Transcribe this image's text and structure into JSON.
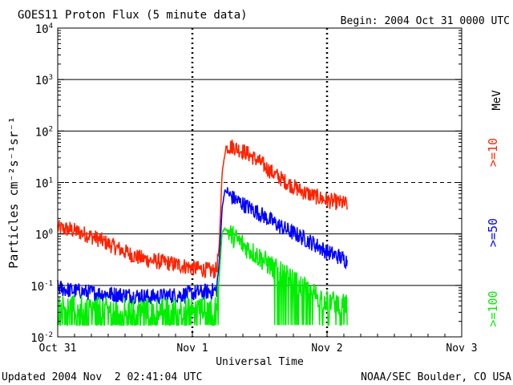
{
  "chart_data": {
    "type": "line",
    "title": "GOES11 Proton Flux (5 minute data)",
    "begin_label": "Begin: 2004 Oct 31 0000 UTC",
    "xlabel": "Universal Time",
    "ylabel": "Particles cm⁻²s⁻¹sr⁻¹",
    "y_scale": "log",
    "ylim": [
      0.01,
      10000
    ],
    "y_ticks": [
      {
        "value": 0.01,
        "base": "10",
        "exp": "-2"
      },
      {
        "value": 0.1,
        "base": "10",
        "exp": "-1"
      },
      {
        "value": 1,
        "base": "10",
        "exp": "0"
      },
      {
        "value": 10,
        "base": "10",
        "exp": "1"
      },
      {
        "value": 100,
        "base": "10",
        "exp": "2"
      },
      {
        "value": 1000,
        "base": "10",
        "exp": "3"
      },
      {
        "value": 10000,
        "base": "10",
        "exp": "4"
      }
    ],
    "xlim_days": [
      0,
      3
    ],
    "x_ticks": [
      {
        "day": 0,
        "label": "Oct 31"
      },
      {
        "day": 1,
        "label": "Nov 1"
      },
      {
        "day": 2,
        "label": "Nov 2"
      },
      {
        "day": 3,
        "label": "Nov 3"
      }
    ],
    "grid": "horizontal solid at decades, dashed at 10; dashed vertical markers at day boundaries",
    "series": [
      {
        "name": ">=10",
        "color": "#ff2200",
        "points": [
          [
            0.0,
            1.3
          ],
          [
            0.1,
            1.2
          ],
          [
            0.2,
            1.0
          ],
          [
            0.3,
            0.8
          ],
          [
            0.4,
            0.6
          ],
          [
            0.5,
            0.45
          ],
          [
            0.6,
            0.35
          ],
          [
            0.7,
            0.3
          ],
          [
            0.8,
            0.28
          ],
          [
            0.9,
            0.25
          ],
          [
            1.0,
            0.22
          ],
          [
            1.1,
            0.2
          ],
          [
            1.15,
            0.19
          ],
          [
            1.18,
            0.2
          ],
          [
            1.2,
            0.6
          ],
          [
            1.22,
            15
          ],
          [
            1.25,
            50
          ],
          [
            1.3,
            50
          ],
          [
            1.4,
            38
          ],
          [
            1.5,
            25
          ],
          [
            1.6,
            15
          ],
          [
            1.7,
            10
          ],
          [
            1.8,
            7
          ],
          [
            1.9,
            5.5
          ],
          [
            2.0,
            4.5
          ],
          [
            2.1,
            4.0
          ],
          [
            2.15,
            3.8
          ]
        ]
      },
      {
        "name": ">=50",
        "color": "#0000ff",
        "points": [
          [
            0.0,
            0.09
          ],
          [
            0.1,
            0.08
          ],
          [
            0.2,
            0.075
          ],
          [
            0.3,
            0.07
          ],
          [
            0.5,
            0.065
          ],
          [
            0.7,
            0.06
          ],
          [
            0.9,
            0.065
          ],
          [
            1.0,
            0.07
          ],
          [
            1.1,
            0.075
          ],
          [
            1.18,
            0.08
          ],
          [
            1.2,
            0.3
          ],
          [
            1.22,
            3
          ],
          [
            1.24,
            7
          ],
          [
            1.3,
            5
          ],
          [
            1.4,
            3.5
          ],
          [
            1.5,
            2.5
          ],
          [
            1.6,
            1.7
          ],
          [
            1.7,
            1.2
          ],
          [
            1.8,
            0.9
          ],
          [
            1.9,
            0.65
          ],
          [
            2.0,
            0.45
          ],
          [
            2.1,
            0.35
          ],
          [
            2.15,
            0.3
          ]
        ]
      },
      {
        "name": ">=100",
        "color": "#00ee00",
        "points": [
          [
            0.0,
            0.04
          ],
          [
            0.2,
            0.038
          ],
          [
            0.4,
            0.036
          ],
          [
            0.6,
            0.035
          ],
          [
            0.8,
            0.035
          ],
          [
            1.0,
            0.036
          ],
          [
            1.1,
            0.037
          ],
          [
            1.18,
            0.04
          ],
          [
            1.2,
            0.15
          ],
          [
            1.22,
            1.0
          ],
          [
            1.24,
            1.3
          ],
          [
            1.3,
            0.9
          ],
          [
            1.4,
            0.55
          ],
          [
            1.5,
            0.35
          ],
          [
            1.6,
            0.22
          ],
          [
            1.7,
            0.15
          ],
          [
            1.8,
            0.1
          ],
          [
            1.9,
            0.07
          ],
          [
            2.0,
            0.05
          ],
          [
            2.1,
            0.045
          ],
          [
            2.15,
            0.04
          ]
        ]
      }
    ],
    "legend_unit": "MeV"
  },
  "footer": {
    "updated": "Updated 2004 Nov  2 02:41:04 UTC",
    "credit": "NOAA/SEC Boulder, CO USA"
  }
}
